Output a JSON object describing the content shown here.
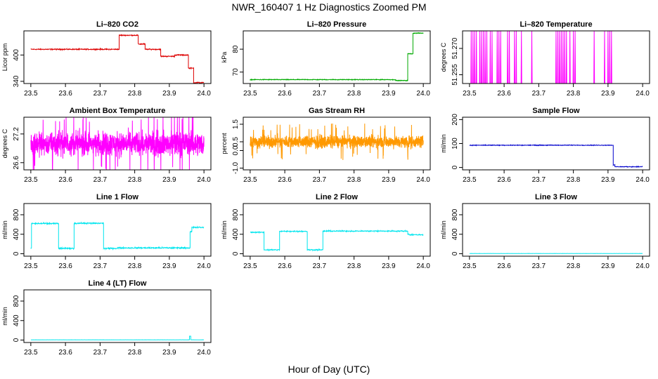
{
  "figure": {
    "title": "NWR_160407  1 Hz Diagnostics Zoomed PM",
    "xlabel": "Hour of Day (UTC)"
  },
  "chart_data": [
    {
      "id": "co2",
      "type": "line",
      "title": "Li–820 CO2",
      "ylabel": "Licor ppm",
      "color": "#dd0000",
      "xlim": [
        23.48,
        24.02
      ],
      "ylim": [
        335,
        455
      ],
      "xticks": [
        23.5,
        23.6,
        23.7,
        23.8,
        23.9,
        24.0
      ],
      "xtick_labels": [
        "23.5",
        "23.6",
        "23.7",
        "23.8",
        "23.9",
        "24.0"
      ],
      "yticks": [
        340,
        400
      ],
      "ytick_labels": [
        "340",
        "400"
      ],
      "noise": 0.8,
      "segments": [
        [
          23.5,
          23.755,
          413
        ],
        [
          23.755,
          23.81,
          445
        ],
        [
          23.81,
          23.83,
          425
        ],
        [
          23.83,
          23.875,
          413
        ],
        [
          23.875,
          23.915,
          397
        ],
        [
          23.915,
          23.955,
          400
        ],
        [
          23.955,
          23.97,
          370
        ],
        [
          23.97,
          24.0,
          337
        ]
      ]
    },
    {
      "id": "pressure",
      "type": "line",
      "title": "Li–820 Pressure",
      "ylabel": "kPa",
      "color": "#00aa00",
      "xlim": [
        23.48,
        24.02
      ],
      "ylim": [
        65,
        88
      ],
      "xticks": [
        23.5,
        23.6,
        23.7,
        23.8,
        23.9,
        24.0
      ],
      "xtick_labels": [
        "23.5",
        "23.6",
        "23.7",
        "23.8",
        "23.9",
        "24.0"
      ],
      "yticks": [
        70,
        80
      ],
      "ytick_labels": [
        "70",
        "80"
      ],
      "noise": 0.1,
      "segments": [
        [
          23.5,
          23.92,
          66.7
        ],
        [
          23.92,
          23.955,
          66.3
        ],
        [
          23.955,
          23.97,
          78
        ],
        [
          23.97,
          24.0,
          87
        ]
      ]
    },
    {
      "id": "licor-temp",
      "type": "line",
      "title": "Li–820 Temperature",
      "ylabel": "degrees C",
      "color": "#ff00ff",
      "xlim": [
        23.48,
        24.02
      ],
      "ylim": [
        51.25,
        51.28
      ],
      "xticks": [
        23.5,
        23.6,
        23.7,
        23.8,
        23.9,
        24.0
      ],
      "xtick_labels": [
        "23.5",
        "23.6",
        "23.7",
        "23.8",
        "23.9",
        "24.0"
      ],
      "yticks": [
        51.255,
        51.27
      ],
      "ytick_labels": [
        "51.255",
        "51.270"
      ],
      "baseline": 51.25,
      "spike_value": 51.28,
      "spikes": [
        23.505,
        23.51,
        23.515,
        23.52,
        23.53,
        23.535,
        23.54,
        23.545,
        23.55,
        23.56,
        23.565,
        23.58,
        23.585,
        23.59,
        23.61,
        23.615,
        23.63,
        23.635,
        23.65,
        23.68,
        23.75,
        23.755,
        23.76,
        23.765,
        23.77,
        23.775,
        23.78,
        23.79,
        23.8,
        23.805,
        23.86,
        23.89,
        23.9,
        23.905,
        23.91
      ]
    },
    {
      "id": "box-temp",
      "type": "line",
      "title": "Ambient Box Temperature",
      "ylabel": "degrees C",
      "color": "#ff00ff",
      "xlim": [
        23.48,
        24.02
      ],
      "ylim": [
        26.45,
        27.55
      ],
      "xticks": [
        23.5,
        23.6,
        23.7,
        23.8,
        23.9,
        24.0
      ],
      "xtick_labels": [
        "23.5",
        "23.6",
        "23.7",
        "23.8",
        "23.9",
        "24.0"
      ],
      "yticks": [
        26.6,
        27.2
      ],
      "ytick_labels": [
        "26.6",
        "27.2"
      ],
      "mean": 27.0,
      "noise": 0.28
    },
    {
      "id": "rh",
      "type": "line",
      "title": "Gas Stream RH",
      "ylabel": "percent",
      "color": "#ff9900",
      "xlim": [
        23.48,
        24.02
      ],
      "ylim": [
        -1.1,
        1.9
      ],
      "xticks": [
        23.5,
        23.6,
        23.7,
        23.8,
        23.9,
        24.0
      ],
      "xtick_labels": [
        "23.5",
        "23.6",
        "23.7",
        "23.8",
        "23.9",
        "24.0"
      ],
      "yticks": [
        -1.0,
        0.0,
        0.5,
        1.5
      ],
      "ytick_labels": [
        "-1.0",
        "0.0",
        "0.5",
        "1.5"
      ],
      "mean": 0.5,
      "noise": 0.4
    },
    {
      "id": "sample-flow",
      "type": "line",
      "title": "Sample Flow",
      "ylabel": "ml/min",
      "color": "#0000cc",
      "xlim": [
        23.48,
        24.02
      ],
      "ylim": [
        -10,
        210
      ],
      "xticks": [
        23.5,
        23.6,
        23.7,
        23.8,
        23.9,
        24.0
      ],
      "xtick_labels": [
        "23.5",
        "23.6",
        "23.7",
        "23.8",
        "23.9",
        "24.0"
      ],
      "yticks": [
        0,
        100,
        200
      ],
      "ytick_labels": [
        "0",
        "100",
        "200"
      ],
      "noise": 1.0,
      "segments": [
        [
          23.5,
          23.915,
          93
        ],
        [
          23.915,
          23.92,
          10
        ],
        [
          23.92,
          24.0,
          3
        ]
      ]
    },
    {
      "id": "line1-flow",
      "type": "line",
      "title": "Line 1 Flow",
      "ylabel": "ml/min",
      "color": "#00e5ee",
      "xlim": [
        23.48,
        24.02
      ],
      "ylim": [
        -50,
        1030
      ],
      "xticks": [
        23.5,
        23.6,
        23.7,
        23.8,
        23.9,
        24.0
      ],
      "xtick_labels": [
        "23.5",
        "23.6",
        "23.7",
        "23.8",
        "23.9",
        "24.0"
      ],
      "yticks": [
        0,
        400,
        800
      ],
      "ytick_labels": [
        "0",
        "400",
        "800"
      ],
      "noise": 10,
      "segments": [
        [
          23.5,
          23.502,
          120
        ],
        [
          23.502,
          23.58,
          620
        ],
        [
          23.58,
          23.625,
          110
        ],
        [
          23.625,
          23.71,
          625
        ],
        [
          23.71,
          23.75,
          110
        ],
        [
          23.75,
          23.96,
          120
        ],
        [
          23.96,
          23.965,
          450
        ],
        [
          23.965,
          24.0,
          540
        ]
      ]
    },
    {
      "id": "line2-flow",
      "type": "line",
      "title": "Line 2 Flow",
      "ylabel": "ml/min",
      "color": "#00e5ee",
      "xlim": [
        23.48,
        24.02
      ],
      "ylim": [
        -50,
        1030
      ],
      "xticks": [
        23.5,
        23.6,
        23.7,
        23.8,
        23.9,
        24.0
      ],
      "xtick_labels": [
        "23.5",
        "23.6",
        "23.7",
        "23.8",
        "23.9",
        "24.0"
      ],
      "yticks": [
        0,
        400,
        800
      ],
      "ytick_labels": [
        "0",
        "400",
        "800"
      ],
      "noise": 8,
      "segments": [
        [
          23.5,
          23.54,
          440
        ],
        [
          23.54,
          23.585,
          80
        ],
        [
          23.585,
          23.665,
          460
        ],
        [
          23.665,
          23.71,
          80
        ],
        [
          23.71,
          23.955,
          465
        ],
        [
          23.955,
          23.96,
          400
        ],
        [
          23.96,
          24.0,
          390
        ]
      ]
    },
    {
      "id": "line3-flow",
      "type": "line",
      "title": "Line 3 Flow",
      "ylabel": "ml/min",
      "color": "#00e5ee",
      "xlim": [
        23.48,
        24.02
      ],
      "ylim": [
        -50,
        1030
      ],
      "xticks": [
        23.5,
        23.6,
        23.7,
        23.8,
        23.9,
        24.0
      ],
      "xtick_labels": [
        "23.5",
        "23.6",
        "23.7",
        "23.8",
        "23.9",
        "24.0"
      ],
      "yticks": [
        0,
        400,
        800
      ],
      "ytick_labels": [
        "0",
        "400",
        "800"
      ],
      "noise": 1,
      "segments": [
        [
          23.5,
          24.0,
          5
        ]
      ]
    },
    {
      "id": "line4-flow",
      "type": "line",
      "title": "Line 4 (LT) Flow",
      "ylabel": "ml/min",
      "color": "#00e5ee",
      "xlim": [
        23.48,
        24.02
      ],
      "ylim": [
        -50,
        1030
      ],
      "xticks": [
        23.5,
        23.6,
        23.7,
        23.8,
        23.9,
        24.0
      ],
      "xtick_labels": [
        "23.5",
        "23.6",
        "23.7",
        "23.8",
        "23.9",
        "24.0"
      ],
      "yticks": [
        0,
        400,
        800
      ],
      "ytick_labels": [
        "0",
        "400",
        "800"
      ],
      "noise": 1,
      "segments": [
        [
          23.5,
          23.958,
          5
        ],
        [
          23.958,
          23.962,
          80
        ],
        [
          23.962,
          24.0,
          5
        ]
      ]
    }
  ]
}
